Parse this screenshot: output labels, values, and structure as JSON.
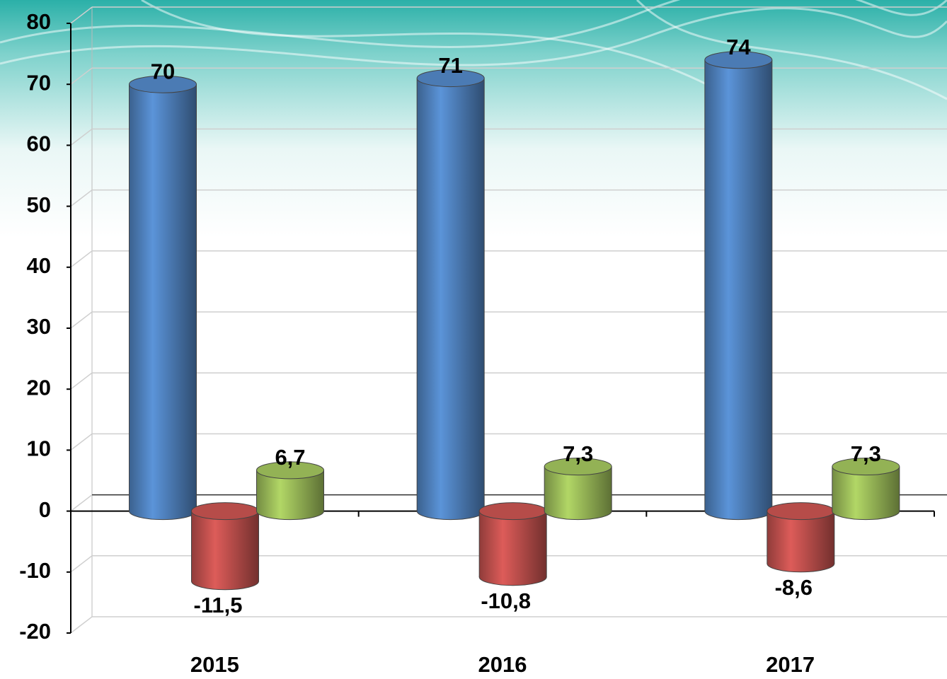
{
  "chart_data": {
    "type": "bar3d",
    "categories": [
      "2015",
      "2016",
      "2017"
    ],
    "series": [
      {
        "color": "#4f81bd",
        "values": [
          70,
          71,
          74
        ]
      },
      {
        "color": "#c0504d",
        "values": [
          -11.5,
          -10.8,
          -8.6
        ],
        "value_labels": [
          "-11,5",
          "-10,8",
          "-8,6"
        ]
      },
      {
        "color": "#9bbb59",
        "values": [
          6.7,
          7.3,
          7.3
        ],
        "value_labels": [
          "6,7",
          "7,3",
          "7,3"
        ]
      }
    ],
    "ylim": [
      -20,
      80
    ],
    "yticks": [
      -20,
      -10,
      0,
      10,
      20,
      30,
      40,
      50,
      60,
      70,
      80
    ],
    "grid": true
  }
}
